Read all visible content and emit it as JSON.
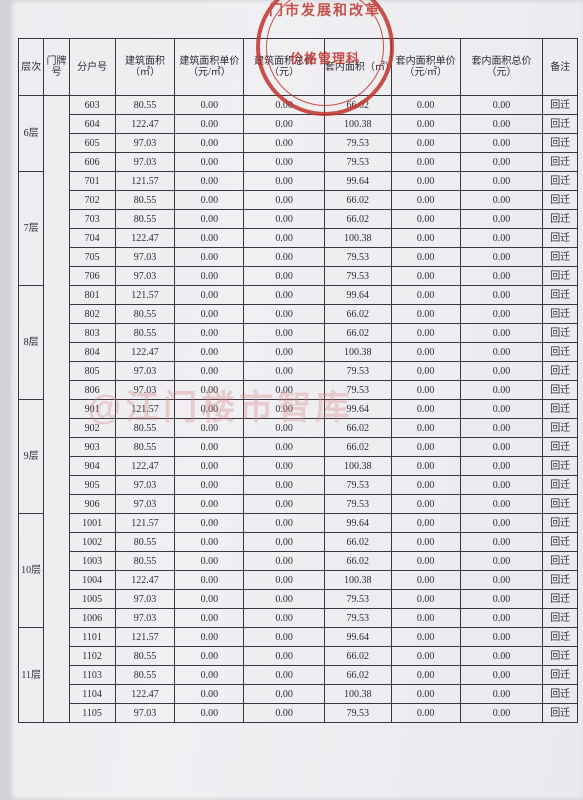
{
  "seal": {
    "top": "门市发展和改革",
    "mid": "价格管理科"
  },
  "watermark": "@江门楼市智库",
  "columns": [
    "层次",
    "门牌号",
    "分户号",
    "建筑面积（㎡）",
    "建筑面积单价（元/㎡）",
    "建筑面积总价（元）",
    "套内面积（㎡）",
    "套内面积单价（元/㎡）",
    "套内面积总价（元）",
    "备注"
  ],
  "groups": [
    {
      "floor": "6层",
      "rows": [
        {
          "u": "603",
          "a": "80.55",
          "b": "0.00",
          "c": "0.00",
          "d": "66.02",
          "e": "0.00",
          "f": "0.00",
          "m": "回迁"
        },
        {
          "u": "604",
          "a": "122.47",
          "b": "0.00",
          "c": "0.00",
          "d": "100.38",
          "e": "0.00",
          "f": "0.00",
          "m": "回迁"
        },
        {
          "u": "605",
          "a": "97.03",
          "b": "0.00",
          "c": "0.00",
          "d": "79.53",
          "e": "0.00",
          "f": "0.00",
          "m": "回迁"
        },
        {
          "u": "606",
          "a": "97.03",
          "b": "0.00",
          "c": "0.00",
          "d": "79.53",
          "e": "0.00",
          "f": "0.00",
          "m": "回迁"
        }
      ]
    },
    {
      "floor": "7层",
      "rows": [
        {
          "u": "701",
          "a": "121.57",
          "b": "0.00",
          "c": "0.00",
          "d": "99.64",
          "e": "0.00",
          "f": "0.00",
          "m": "回迁"
        },
        {
          "u": "702",
          "a": "80.55",
          "b": "0.00",
          "c": "0.00",
          "d": "66.02",
          "e": "0.00",
          "f": "0.00",
          "m": "回迁"
        },
        {
          "u": "703",
          "a": "80.55",
          "b": "0.00",
          "c": "0.00",
          "d": "66.02",
          "e": "0.00",
          "f": "0.00",
          "m": "回迁"
        },
        {
          "u": "704",
          "a": "122.47",
          "b": "0.00",
          "c": "0.00",
          "d": "100.38",
          "e": "0.00",
          "f": "0.00",
          "m": "回迁"
        },
        {
          "u": "705",
          "a": "97.03",
          "b": "0.00",
          "c": "0.00",
          "d": "79.53",
          "e": "0.00",
          "f": "0.00",
          "m": "回迁"
        },
        {
          "u": "706",
          "a": "97.03",
          "b": "0.00",
          "c": "0.00",
          "d": "79.53",
          "e": "0.00",
          "f": "0.00",
          "m": "回迁"
        }
      ]
    },
    {
      "floor": "8层",
      "rows": [
        {
          "u": "801",
          "a": "121.57",
          "b": "0.00",
          "c": "0.00",
          "d": "99.64",
          "e": "0.00",
          "f": "0.00",
          "m": "回迁"
        },
        {
          "u": "802",
          "a": "80.55",
          "b": "0.00",
          "c": "0.00",
          "d": "66.02",
          "e": "0.00",
          "f": "0.00",
          "m": "回迁"
        },
        {
          "u": "803",
          "a": "80.55",
          "b": "0.00",
          "c": "0.00",
          "d": "66.02",
          "e": "0.00",
          "f": "0.00",
          "m": "回迁"
        },
        {
          "u": "804",
          "a": "122.47",
          "b": "0.00",
          "c": "0.00",
          "d": "100.38",
          "e": "0.00",
          "f": "0.00",
          "m": "回迁"
        },
        {
          "u": "805",
          "a": "97.03",
          "b": "0.00",
          "c": "0.00",
          "d": "79.53",
          "e": "0.00",
          "f": "0.00",
          "m": "回迁"
        },
        {
          "u": "806",
          "a": "97.03",
          "b": "0.00",
          "c": "0.00",
          "d": "79.53",
          "e": "0.00",
          "f": "0.00",
          "m": "回迁"
        }
      ]
    },
    {
      "floor": "9层",
      "rows": [
        {
          "u": "901",
          "a": "121.57",
          "b": "0.00",
          "c": "0.00",
          "d": "99.64",
          "e": "0.00",
          "f": "0.00",
          "m": "回迁"
        },
        {
          "u": "902",
          "a": "80.55",
          "b": "0.00",
          "c": "0.00",
          "d": "66.02",
          "e": "0.00",
          "f": "0.00",
          "m": "回迁"
        },
        {
          "u": "903",
          "a": "80.55",
          "b": "0.00",
          "c": "0.00",
          "d": "66.02",
          "e": "0.00",
          "f": "0.00",
          "m": "回迁"
        },
        {
          "u": "904",
          "a": "122.47",
          "b": "0.00",
          "c": "0.00",
          "d": "100.38",
          "e": "0.00",
          "f": "0.00",
          "m": "回迁"
        },
        {
          "u": "905",
          "a": "97.03",
          "b": "0.00",
          "c": "0.00",
          "d": "79.53",
          "e": "0.00",
          "f": "0.00",
          "m": "回迁"
        },
        {
          "u": "906",
          "a": "97.03",
          "b": "0.00",
          "c": "0.00",
          "d": "79.53",
          "e": "0.00",
          "f": "0.00",
          "m": "回迁"
        }
      ]
    },
    {
      "floor": "10层",
      "rows": [
        {
          "u": "1001",
          "a": "121.57",
          "b": "0.00",
          "c": "0.00",
          "d": "99.64",
          "e": "0.00",
          "f": "0.00",
          "m": "回迁"
        },
        {
          "u": "1002",
          "a": "80.55",
          "b": "0.00",
          "c": "0.00",
          "d": "66.02",
          "e": "0.00",
          "f": "0.00",
          "m": "回迁"
        },
        {
          "u": "1003",
          "a": "80.55",
          "b": "0.00",
          "c": "0.00",
          "d": "66.02",
          "e": "0.00",
          "f": "0.00",
          "m": "回迁"
        },
        {
          "u": "1004",
          "a": "122.47",
          "b": "0.00",
          "c": "0.00",
          "d": "100.38",
          "e": "0.00",
          "f": "0.00",
          "m": "回迁"
        },
        {
          "u": "1005",
          "a": "97.03",
          "b": "0.00",
          "c": "0.00",
          "d": "79.53",
          "e": "0.00",
          "f": "0.00",
          "m": "回迁"
        },
        {
          "u": "1006",
          "a": "97.03",
          "b": "0.00",
          "c": "0.00",
          "d": "79.53",
          "e": "0.00",
          "f": "0.00",
          "m": "回迁"
        }
      ]
    },
    {
      "floor": "11层",
      "rows": [
        {
          "u": "1101",
          "a": "121.57",
          "b": "0.00",
          "c": "0.00",
          "d": "99.64",
          "e": "0.00",
          "f": "0.00",
          "m": "回迁"
        },
        {
          "u": "1102",
          "a": "80.55",
          "b": "0.00",
          "c": "0.00",
          "d": "66.02",
          "e": "0.00",
          "f": "0.00",
          "m": "回迁"
        },
        {
          "u": "1103",
          "a": "80.55",
          "b": "0.00",
          "c": "0.00",
          "d": "66.02",
          "e": "0.00",
          "f": "0.00",
          "m": "回迁"
        },
        {
          "u": "1104",
          "a": "122.47",
          "b": "0.00",
          "c": "0.00",
          "d": "100.38",
          "e": "0.00",
          "f": "0.00",
          "m": "回迁"
        },
        {
          "u": "1105",
          "a": "97.03",
          "b": "0.00",
          "c": "0.00",
          "d": "79.53",
          "e": "0.00",
          "f": "0.00",
          "m": "回迁"
        }
      ]
    }
  ]
}
